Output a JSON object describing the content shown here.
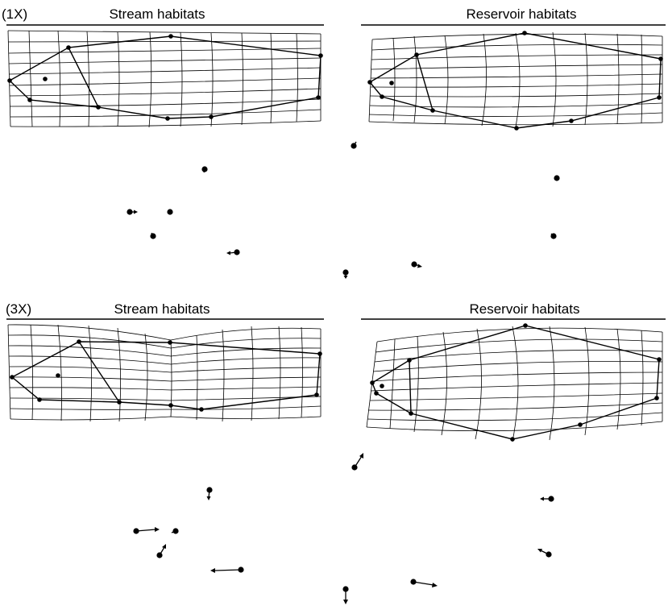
{
  "figure": {
    "rows": [
      {
        "magnification_label": "(1X)",
        "panels": [
          {
            "title": "Stream habitats"
          },
          {
            "title": "Reservoir habitats"
          }
        ]
      },
      {
        "magnification_label": "(3X)",
        "panels": [
          {
            "title": "Stream habitats"
          },
          {
            "title": "Reservoir habitats"
          }
        ]
      }
    ],
    "colors": {
      "ink": "#000000",
      "background": "#ffffff"
    }
  }
}
